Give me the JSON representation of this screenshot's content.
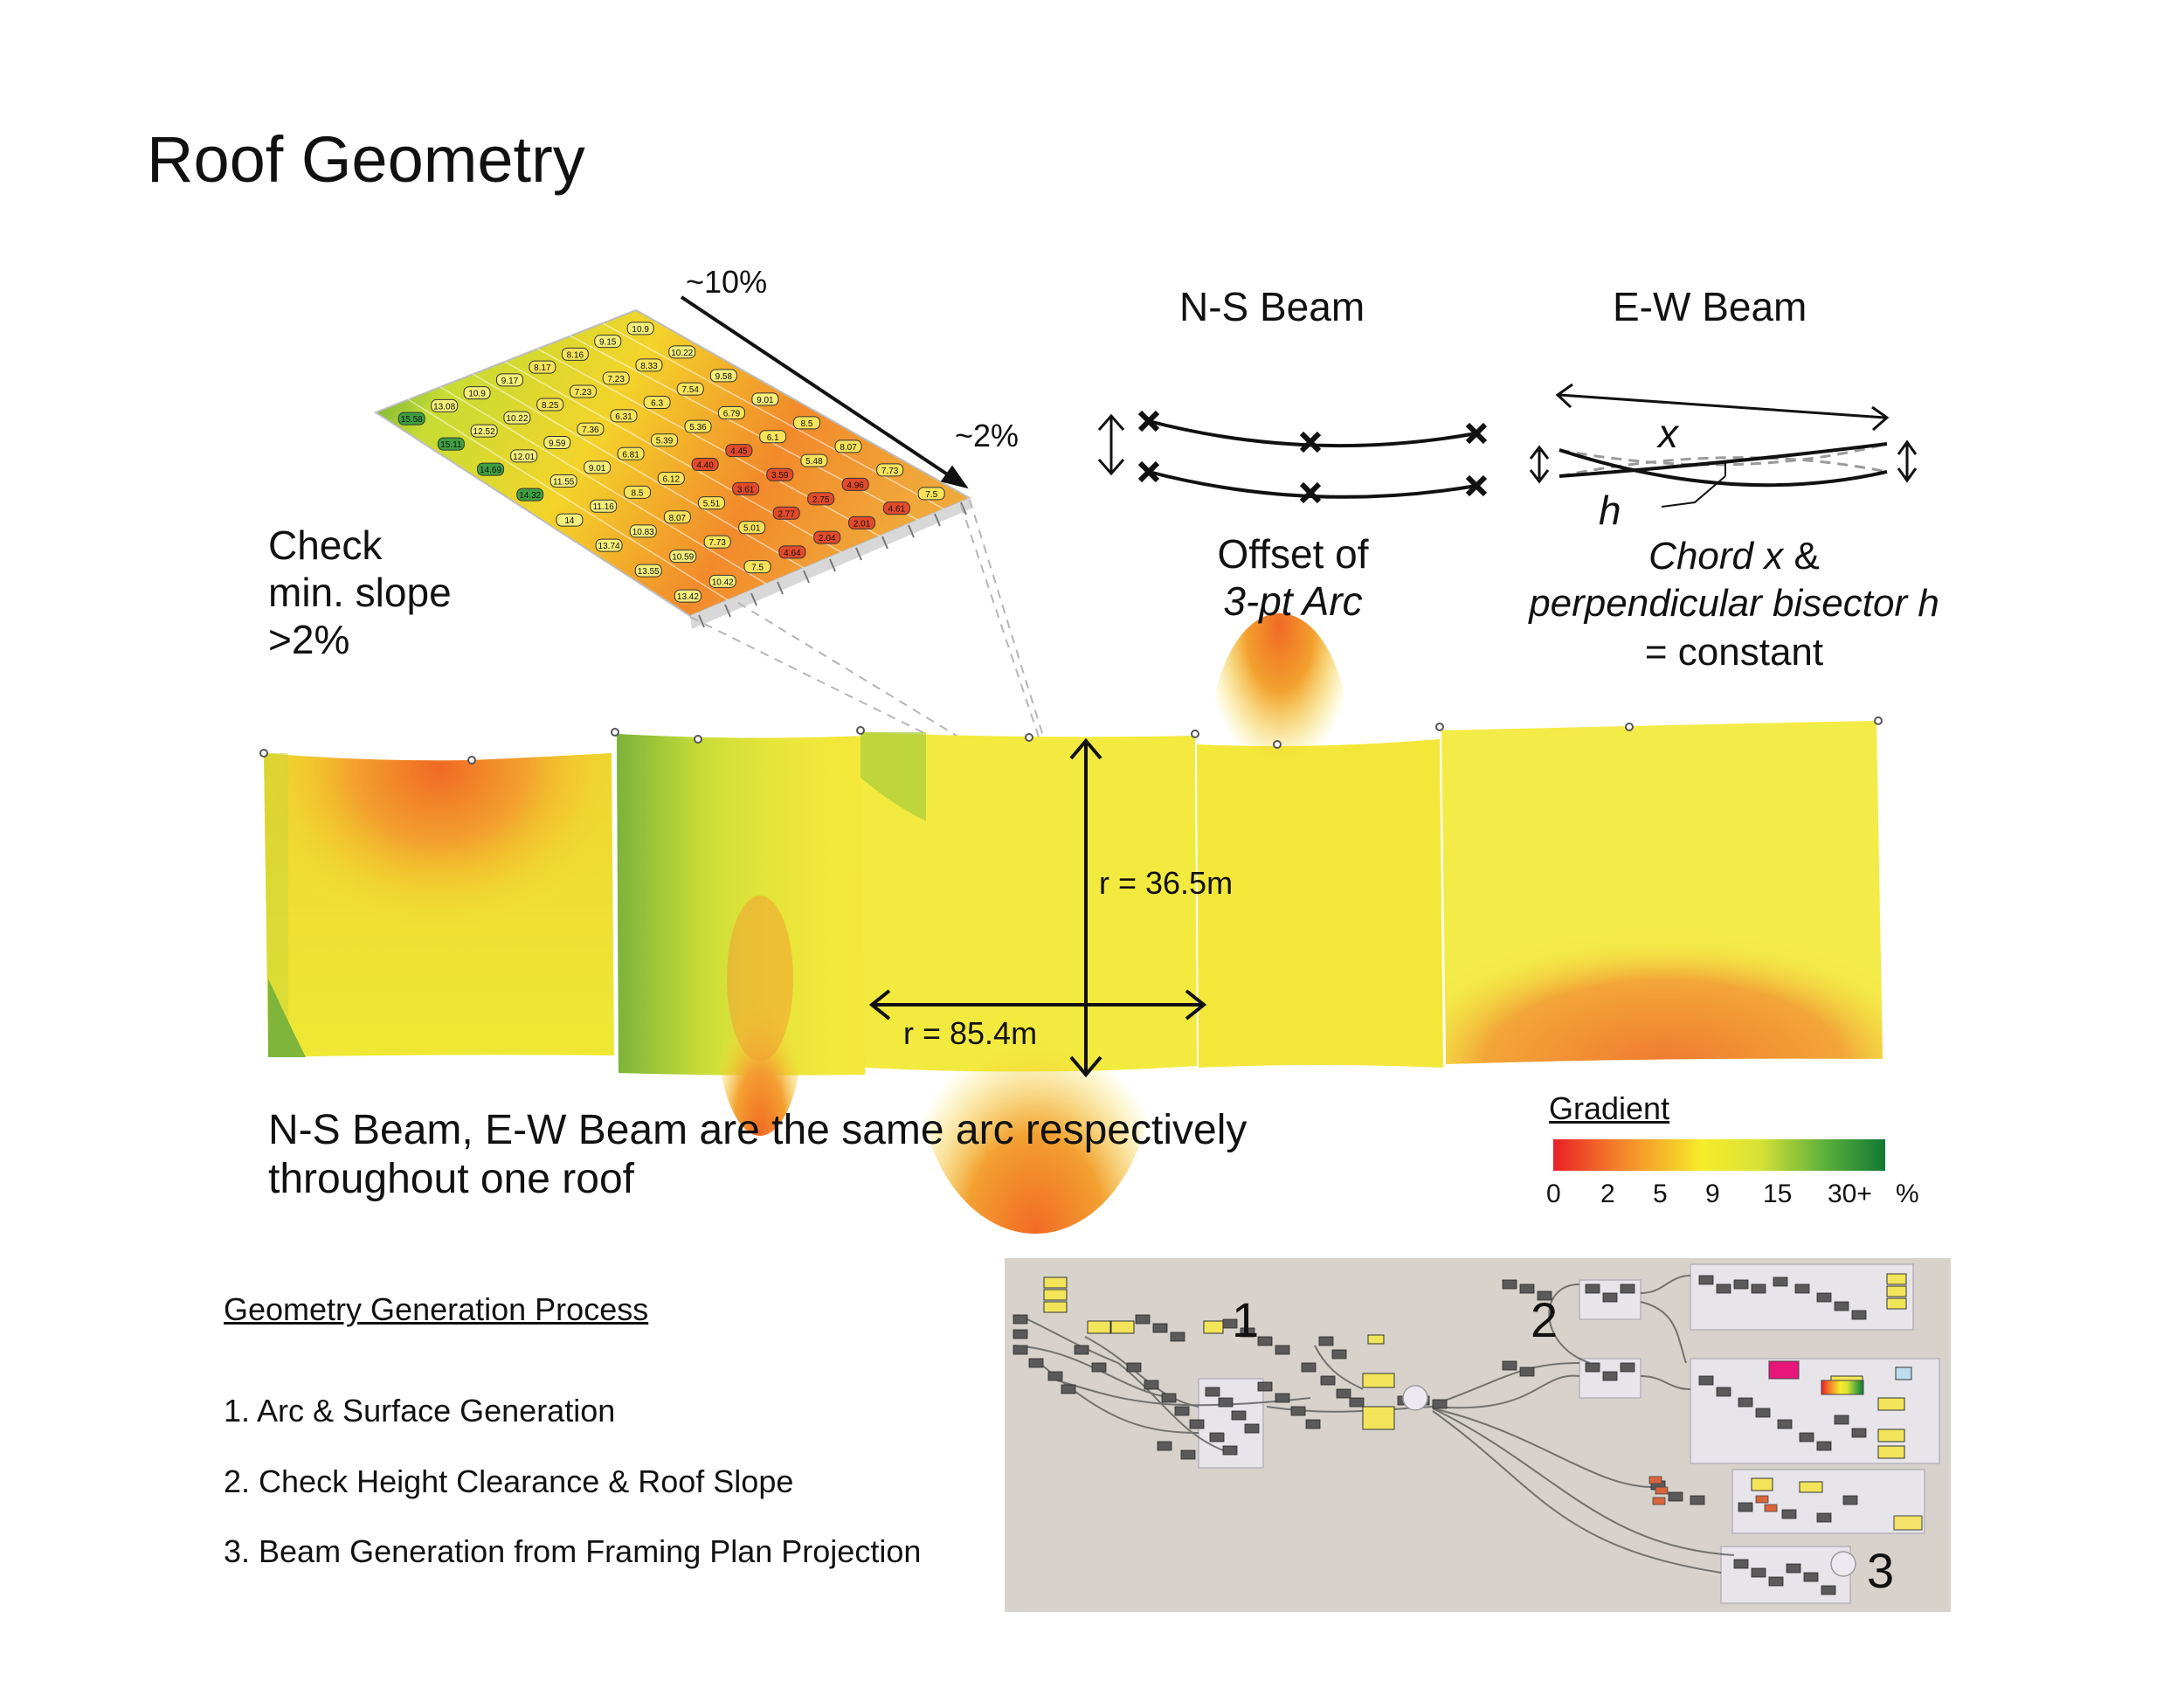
{
  "title": "Roof Geometry",
  "slope_diagram": {
    "label_10": "~10%",
    "label_2": "~2%",
    "check_line1": "Check",
    "check_line2": "min. slope",
    "check_line3": ">2%",
    "cell_values": [
      "10.9",
      "9.15",
      "8.16",
      "8.17",
      "9.17",
      "10.9",
      "13.08",
      "15.58",
      "10.22",
      "8.33",
      "7.23",
      "7.23",
      "8.25",
      "10.22",
      "12.52",
      "15.11",
      "9.58",
      "7.54",
      "6.3",
      "6.31",
      "7.36",
      "9.59",
      "12.01",
      "14.69",
      "9.01",
      "6.79",
      "5.36",
      "5.39",
      "6.81",
      "9.01",
      "11.55",
      "14.32",
      "8.5",
      "6.1",
      "4.45",
      "4.40",
      "6.12",
      "8.5",
      "11.16",
      "14",
      "8.07",
      "5.48",
      "3.59",
      "3.61",
      "5.51",
      "8.07",
      "10.83",
      "13.74",
      "7.73",
      "4.96",
      "2.75",
      "2.77",
      "5.01",
      "7.73",
      "10.59",
      "13.55",
      "7.5",
      "4.61",
      "2.01",
      "2.04",
      "4.64",
      "7.5",
      "10.42",
      "13.42"
    ]
  },
  "ns_beam": {
    "title": "N-S Beam",
    "caption_line1": "Offset of",
    "caption_line2": "3-pt Arc"
  },
  "ew_beam": {
    "title": "E-W Beam",
    "x_label": "x",
    "h_label": "h",
    "caption_line1_italic": "Chord x",
    "caption_line1_rest": " &",
    "caption_line2": "perpendicular bisector h",
    "caption_line3": "= constant"
  },
  "roof_plan": {
    "r_vertical": "r = 36.5m",
    "r_horizontal": "r = 85.4m"
  },
  "same_arc_note": {
    "line1": "N-S Beam, E-W Beam are the same arc respectively",
    "line2": "throughout one roof"
  },
  "legend": {
    "title": "Gradient",
    "ticks": [
      "0",
      "2",
      "5",
      "9",
      "15",
      "30+"
    ],
    "unit": "%",
    "colors": [
      "#e81f27",
      "#f47a2a",
      "#f6ec2a",
      "#c6dc3a",
      "#4aa83c",
      "#137a35"
    ]
  },
  "process": {
    "title": "Geometry Generation Process",
    "steps": [
      "1. Arc & Surface Generation",
      "2. Check Height Clearance & Roof Slope",
      "3. Beam Generation from Framing Plan Projection"
    ]
  },
  "script_panel": {
    "labels": [
      "1",
      "2",
      "3"
    ],
    "background": "#d7d3cc"
  }
}
